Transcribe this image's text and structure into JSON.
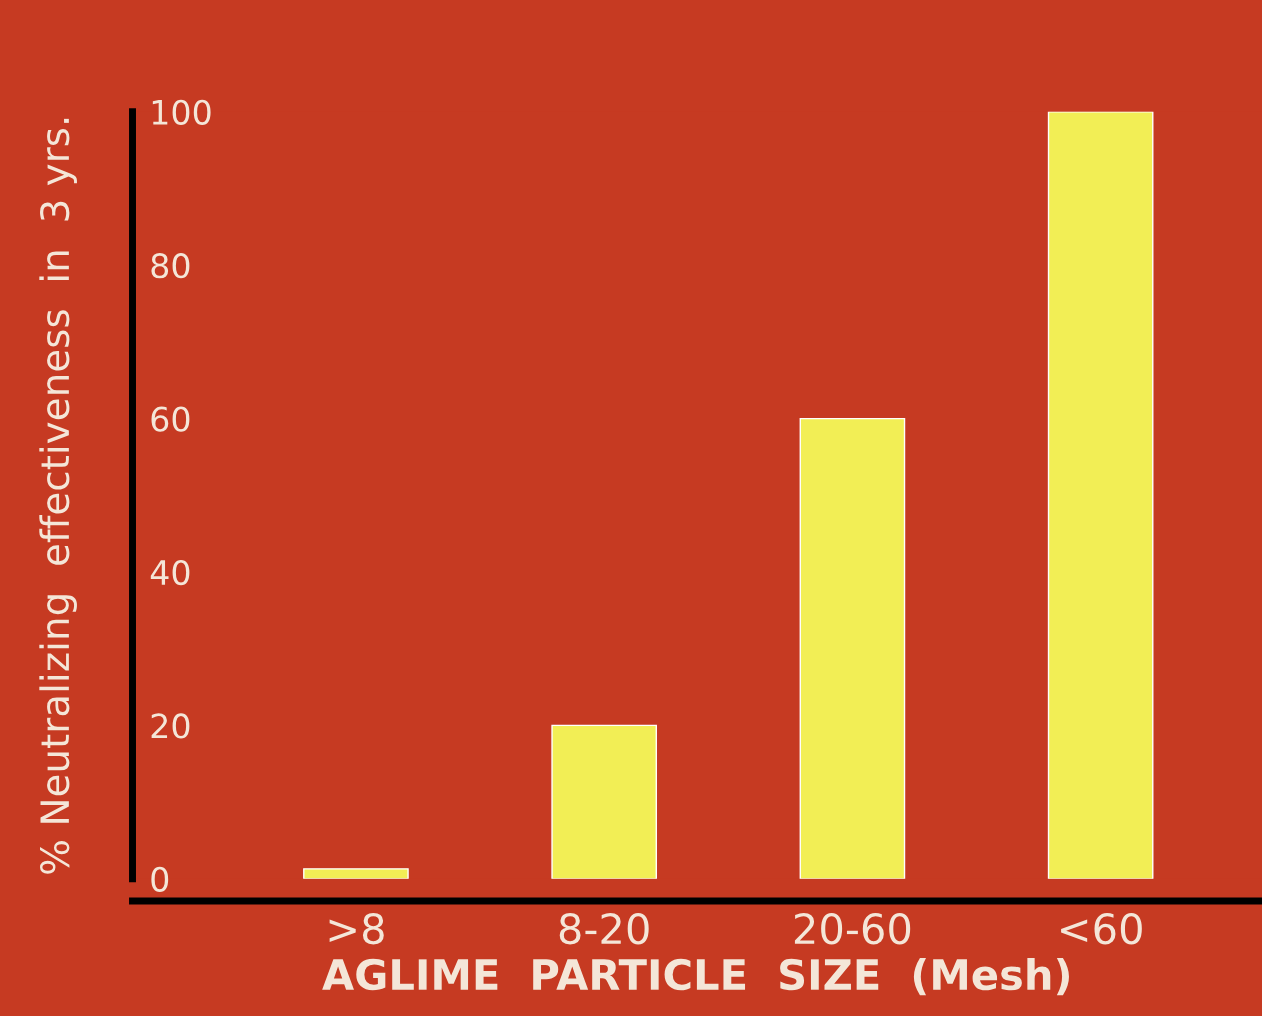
{
  "chart_data": {
    "type": "bar",
    "xlabel": "AGLIME  PARTICLE  SIZE  (Mesh)",
    "ylabel": "% Neutralizing  effectiveness  in  3 yrs.",
    "categories": [
      ">8",
      "8-20",
      "20-60",
      "<60"
    ],
    "values": [
      1.3,
      20,
      60,
      100
    ],
    "color": "#f2ee55",
    "ylim": [
      0,
      100
    ],
    "yticks": [
      0,
      20,
      40,
      60,
      80,
      100
    ],
    "grid": false,
    "legend": false
  }
}
